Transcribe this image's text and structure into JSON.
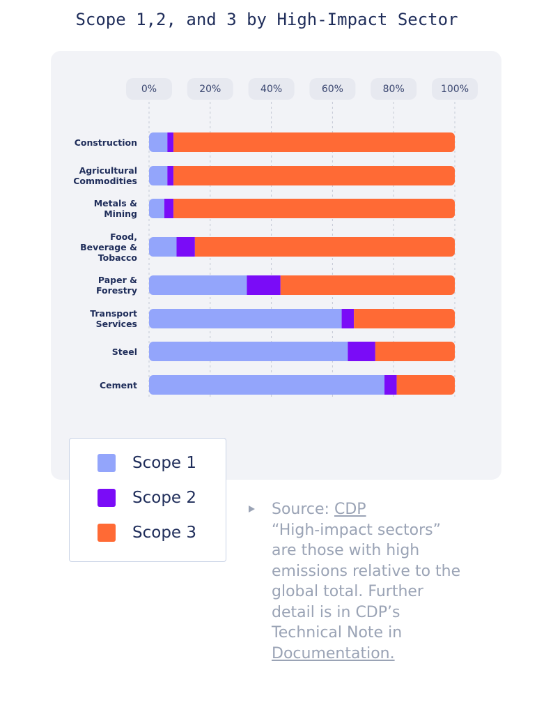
{
  "chart_data": {
    "type": "stacked-bar-horizontal",
    "title": "Scope 1,2, and 3 by High-Impact Sector",
    "categories": [
      "Construction",
      "Agricultural\nCommodities",
      "Metals &\nMining",
      "Food,\nBeverage &\nTobacco",
      "Paper &\nForestry",
      "Transport\nServices",
      "Steel",
      "Cement"
    ],
    "series": [
      {
        "name": "Scope 1",
        "color": "#93a5fb",
        "values": [
          6,
          6,
          5,
          9,
          32,
          63,
          65,
          77
        ]
      },
      {
        "name": "Scope 2",
        "color": "#7a0cf7",
        "values": [
          2,
          2,
          3,
          6,
          11,
          4,
          9,
          4
        ]
      },
      {
        "name": "Scope 3",
        "color": "#ff6a35",
        "values": [
          92,
          92,
          92,
          85,
          57,
          33,
          26,
          19
        ]
      }
    ],
    "xlim": [
      0,
      100
    ],
    "xticks": [
      {
        "value": 0,
        "label": "0%"
      },
      {
        "value": 20,
        "label": "20%"
      },
      {
        "value": 40,
        "label": "40%"
      },
      {
        "value": 60,
        "label": "60%"
      },
      {
        "value": 80,
        "label": "80%"
      },
      {
        "value": 100,
        "label": "100%"
      }
    ],
    "grid": true
  },
  "source": {
    "label": "Source:",
    "link": "CDP",
    "note_lines": [
      "“High-impact sectors”",
      "are those with high",
      "emissions relative to the",
      "global total. Further",
      "detail is in CDP’s",
      "Technical Note in"
    ],
    "documentation_link": "Documentation."
  }
}
